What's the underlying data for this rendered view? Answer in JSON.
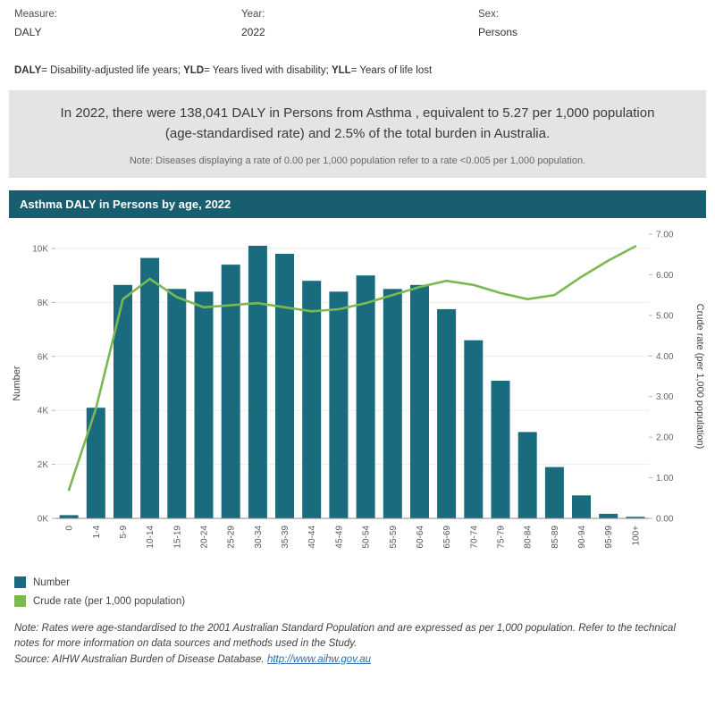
{
  "filters": [
    {
      "label": "Measure:",
      "value": "DALY"
    },
    {
      "label": "Year:",
      "value": "2022"
    },
    {
      "label": "Sex:",
      "value": "Persons"
    }
  ],
  "definitions": [
    {
      "term": "DALY",
      "rest": "= Disability-adjusted life years; "
    },
    {
      "term": "YLD",
      "rest": "= Years lived with disability; "
    },
    {
      "term": "YLL",
      "rest": "= Years of life lost"
    }
  ],
  "summary": {
    "text": "In 2022, there were 138,041 DALY in Persons from Asthma , equivalent to 5.27 per 1,000 population (age-standardised rate) and 2.5% of the total burden in Australia.",
    "note": "Note: Diseases displaying a rate of 0.00 per 1,000 population refer to a rate <0.005 per 1,000 population."
  },
  "chart": {
    "title": "Asthma DALY in Persons by age, 2022"
  },
  "chart_data": {
    "type": "bar",
    "title": "Asthma DALY in Persons by age, 2022",
    "categories": [
      "0",
      "1-4",
      "5-9",
      "10-14",
      "15-19",
      "20-24",
      "25-29",
      "30-34",
      "35-39",
      "40-44",
      "45-49",
      "50-54",
      "55-59",
      "60-64",
      "65-69",
      "70-74",
      "75-79",
      "80-84",
      "85-89",
      "90-94",
      "95-99",
      "100+"
    ],
    "series": [
      {
        "name": "Number",
        "type": "bar",
        "axis": "left",
        "color": "#1a6b7e",
        "values": [
          120,
          4100,
          8650,
          9650,
          8500,
          8400,
          9400,
          10100,
          9800,
          8800,
          8400,
          9000,
          8500,
          8650,
          7750,
          6600,
          5100,
          3200,
          1900,
          850,
          170,
          60
        ]
      },
      {
        "name": "Crude rate (per 1,000 population)",
        "type": "line",
        "axis": "right",
        "color": "#7cb852",
        "values": [
          0.7,
          2.7,
          5.4,
          5.9,
          5.45,
          5.2,
          5.25,
          5.3,
          5.2,
          5.1,
          5.15,
          5.3,
          5.5,
          5.7,
          5.85,
          5.75,
          5.55,
          5.4,
          5.5,
          5.95,
          6.35,
          6.7
        ]
      }
    ],
    "left_axis": {
      "label": "Number",
      "ticks": [
        "0K",
        "2K",
        "4K",
        "6K",
        "8K",
        "10K"
      ],
      "tick_step": 2000,
      "max": 10500
    },
    "right_axis": {
      "label": "Crude rate (per 1,000 population)",
      "ticks": [
        "0.00",
        "1.00",
        "2.00",
        "3.00",
        "4.00",
        "5.00",
        "6.00",
        "7.00"
      ],
      "tick_step": 1,
      "max": 7
    },
    "grid": true,
    "legend_position": "bottom-left"
  },
  "legend": [
    {
      "label": "Number",
      "color": "#1a6b7e"
    },
    {
      "label": "Crude rate (per 1,000 population)",
      "color": "#7cb852"
    }
  ],
  "footer": {
    "note": "Note: Rates were age-standardised to the 2001 Australian Standard Population and are expressed as per 1,000 population. Refer to the technical notes for more information on data sources and methods used in the Study.",
    "source_prefix": "Source: AIHW Australian Burden of Disease Database. ",
    "source_link": "http://www.aihw.gov.au"
  }
}
